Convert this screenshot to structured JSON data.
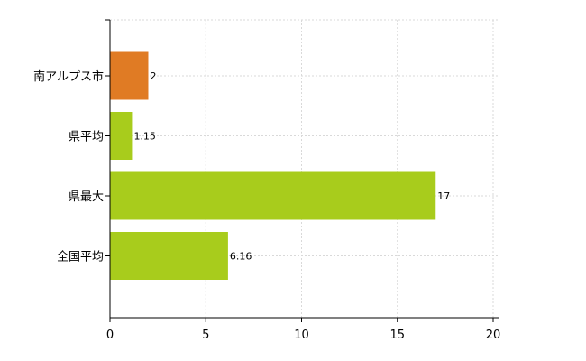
{
  "chart_data": {
    "type": "bar",
    "orientation": "horizontal",
    "categories": [
      "南アルプス市",
      "県平均",
      "県最大",
      "全国平均"
    ],
    "values": [
      2,
      1.15,
      17,
      6.16
    ],
    "value_labels": [
      "2",
      "1.15",
      "17",
      "6.16"
    ],
    "bar_colors": [
      "#E07B24",
      "#A8CC1C",
      "#A8CC1C",
      "#A8CC1C"
    ],
    "xlim": [
      0,
      20
    ],
    "xticks": [
      0,
      5,
      10,
      15,
      20
    ],
    "grid": true,
    "title": "",
    "xlabel": "",
    "ylabel": ""
  }
}
